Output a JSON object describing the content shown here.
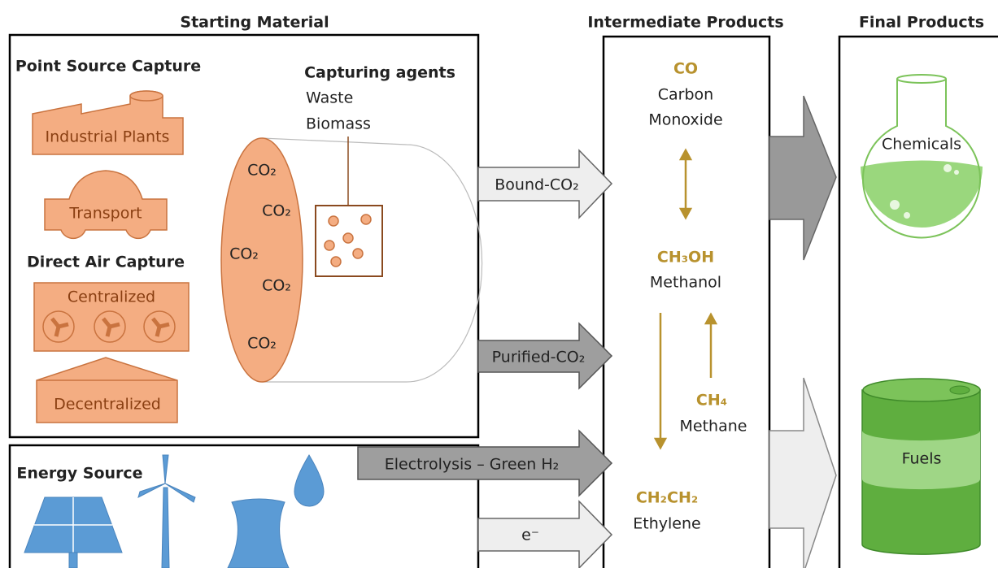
{
  "headers": {
    "starting": "Starting Material",
    "intermediate": "Intermediate Products",
    "final": "Final Products"
  },
  "starting_material": {
    "point_source_capture": {
      "title": "Point Source Capture",
      "items": [
        "Industrial Plants",
        "Transport"
      ]
    },
    "direct_air_capture": {
      "title": "Direct Air Capture",
      "items": [
        "Centralized",
        "Decentralized"
      ]
    },
    "capturing_agents": {
      "title": "Capturing agents",
      "items": [
        "Waste",
        "Biomass"
      ]
    },
    "co2_labels": [
      "CO₂",
      "CO₂",
      "CO₂",
      "CO₂",
      "CO₂"
    ]
  },
  "energy_source": {
    "title": "Energy Source"
  },
  "arrows": [
    "Bound-CO₂",
    "Purified-CO₂",
    "Electrolysis – Green H₂",
    "e⁻"
  ],
  "intermediate_products": [
    {
      "formula": "CO",
      "name": [
        "Carbon",
        "Monoxide"
      ]
    },
    {
      "formula": "CH₃OH",
      "name": [
        "Methanol"
      ]
    },
    {
      "formula": "CH₄",
      "name": [
        "Methane"
      ]
    },
    {
      "formula": "CH₂CH₂",
      "name": [
        "Ethylene"
      ]
    }
  ],
  "final_products": [
    "Chemicals",
    "Fuels"
  ]
}
